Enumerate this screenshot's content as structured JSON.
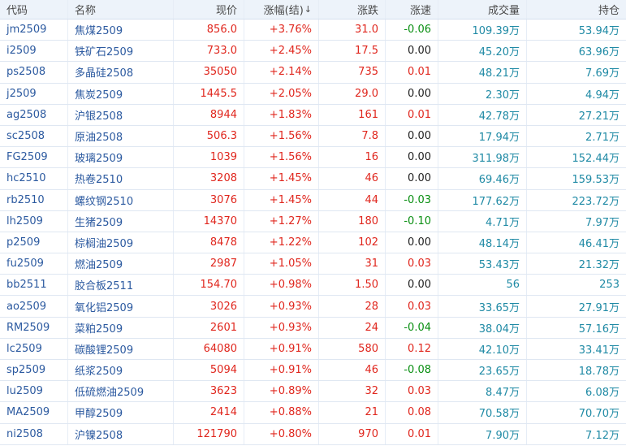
{
  "headers": {
    "code": "代码",
    "name": "名称",
    "price": "现价",
    "change_pct": "涨幅(结)",
    "change": "涨跌",
    "speed": "涨速",
    "volume": "成交量",
    "open_interest": "持仓"
  },
  "sort_arrow": "↓",
  "rows": [
    {
      "code": "jm2509",
      "name": "焦煤2509",
      "price": "856.0",
      "pct": "+3.76%",
      "chg": "31.0",
      "speed": "-0.06",
      "vol": "109.39万",
      "oi": "53.94万"
    },
    {
      "code": "i2509",
      "name": "铁矿石2509",
      "price": "733.0",
      "pct": "+2.45%",
      "chg": "17.5",
      "speed": "0.00",
      "vol": "45.20万",
      "oi": "63.96万"
    },
    {
      "code": "ps2508",
      "name": "多晶硅2508",
      "price": "35050",
      "pct": "+2.14%",
      "chg": "735",
      "speed": "0.01",
      "vol": "48.21万",
      "oi": "7.69万"
    },
    {
      "code": "j2509",
      "name": "焦炭2509",
      "price": "1445.5",
      "pct": "+2.05%",
      "chg": "29.0",
      "speed": "0.00",
      "vol": "2.30万",
      "oi": "4.94万"
    },
    {
      "code": "ag2508",
      "name": "沪银2508",
      "price": "8944",
      "pct": "+1.83%",
      "chg": "161",
      "speed": "0.01",
      "vol": "42.78万",
      "oi": "27.21万"
    },
    {
      "code": "sc2508",
      "name": "原油2508",
      "price": "506.3",
      "pct": "+1.56%",
      "chg": "7.8",
      "speed": "0.00",
      "vol": "17.94万",
      "oi": "2.71万"
    },
    {
      "code": "FG2509",
      "name": "玻璃2509",
      "price": "1039",
      "pct": "+1.56%",
      "chg": "16",
      "speed": "0.00",
      "vol": "311.98万",
      "oi": "152.44万"
    },
    {
      "code": "hc2510",
      "name": "热卷2510",
      "price": "3208",
      "pct": "+1.45%",
      "chg": "46",
      "speed": "0.00",
      "vol": "69.46万",
      "oi": "159.53万"
    },
    {
      "code": "rb2510",
      "name": "螺纹钢2510",
      "price": "3076",
      "pct": "+1.45%",
      "chg": "44",
      "speed": "-0.03",
      "vol": "177.62万",
      "oi": "223.72万"
    },
    {
      "code": "lh2509",
      "name": "生猪2509",
      "price": "14370",
      "pct": "+1.27%",
      "chg": "180",
      "speed": "-0.10",
      "vol": "4.71万",
      "oi": "7.97万"
    },
    {
      "code": "p2509",
      "name": "棕榈油2509",
      "price": "8478",
      "pct": "+1.22%",
      "chg": "102",
      "speed": "0.00",
      "vol": "48.14万",
      "oi": "46.41万"
    },
    {
      "code": "fu2509",
      "name": "燃油2509",
      "price": "2987",
      "pct": "+1.05%",
      "chg": "31",
      "speed": "0.03",
      "vol": "53.43万",
      "oi": "21.32万"
    },
    {
      "code": "bb2511",
      "name": "胶合板2511",
      "price": "154.70",
      "pct": "+0.98%",
      "chg": "1.50",
      "speed": "0.00",
      "vol": "56",
      "oi": "253"
    },
    {
      "code": "ao2509",
      "name": "氧化铝2509",
      "price": "3026",
      "pct": "+0.93%",
      "chg": "28",
      "speed": "0.03",
      "vol": "33.65万",
      "oi": "27.91万"
    },
    {
      "code": "RM2509",
      "name": "菜粕2509",
      "price": "2601",
      "pct": "+0.93%",
      "chg": "24",
      "speed": "-0.04",
      "vol": "38.04万",
      "oi": "57.16万"
    },
    {
      "code": "lc2509",
      "name": "碳酸锂2509",
      "price": "64080",
      "pct": "+0.91%",
      "chg": "580",
      "speed": "0.12",
      "vol": "42.10万",
      "oi": "33.41万"
    },
    {
      "code": "sp2509",
      "name": "纸浆2509",
      "price": "5094",
      "pct": "+0.91%",
      "chg": "46",
      "speed": "-0.08",
      "vol": "23.65万",
      "oi": "18.78万"
    },
    {
      "code": "lu2509",
      "name": "低硫燃油2509",
      "price": "3623",
      "pct": "+0.89%",
      "chg": "32",
      "speed": "0.03",
      "vol": "8.47万",
      "oi": "6.08万"
    },
    {
      "code": "MA2509",
      "name": "甲醇2509",
      "price": "2414",
      "pct": "+0.88%",
      "chg": "21",
      "speed": "0.08",
      "vol": "70.58万",
      "oi": "70.70万"
    },
    {
      "code": "ni2508",
      "name": "沪镍2508",
      "price": "121790",
      "pct": "+0.80%",
      "chg": "970",
      "speed": "0.01",
      "vol": "7.90万",
      "oi": "7.12万"
    }
  ],
  "colors": {
    "up": "#e0261d",
    "down": "#0a8f12",
    "link": "#2c5aa0",
    "volume": "#1f8aa5",
    "header_bg": "#edf3fa"
  }
}
